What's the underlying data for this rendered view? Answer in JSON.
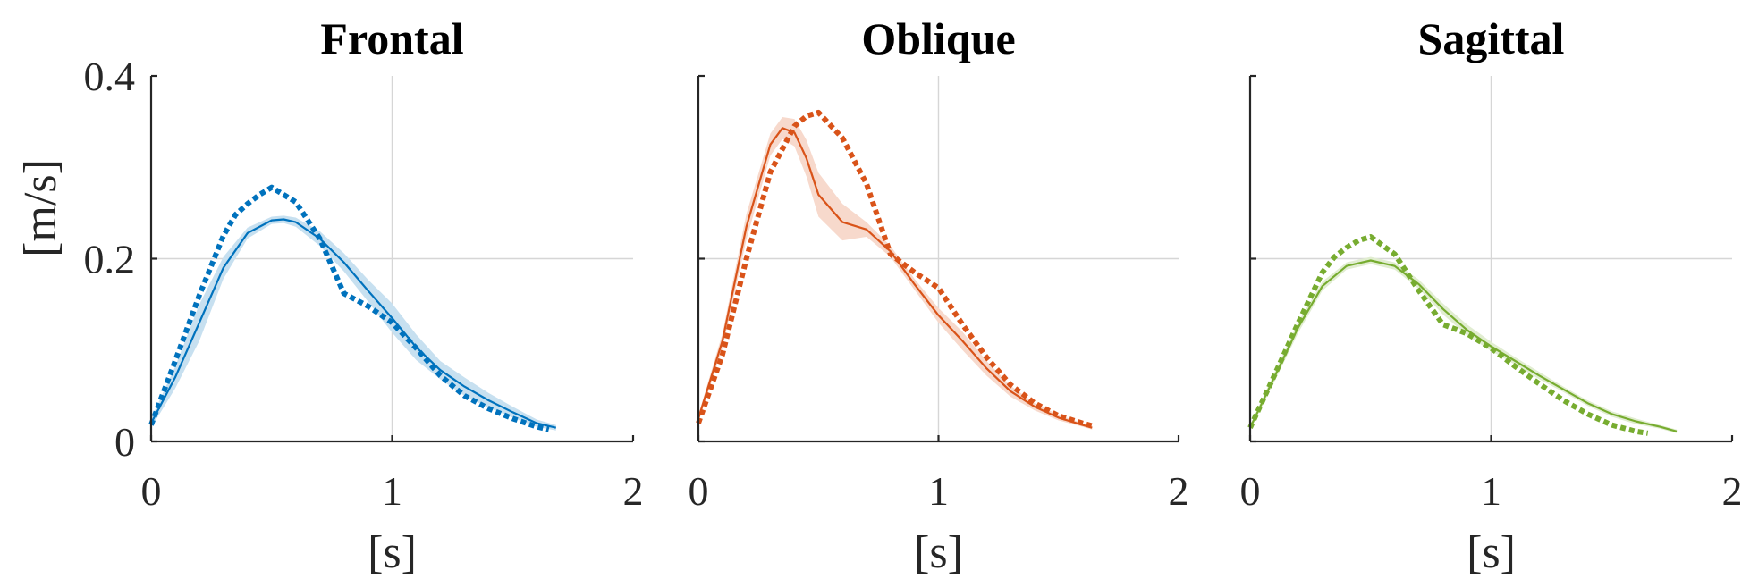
{
  "figure": {
    "ylabel": "[m/s]",
    "xlabel": "[s]",
    "x_ticks": [
      "0",
      "1",
      "2"
    ],
    "y_ticks": [
      "0",
      "0.2",
      "0.4"
    ]
  },
  "chart_data": [
    {
      "type": "line",
      "title": "Frontal",
      "xlabel": "[s]",
      "ylabel": "[m/s]",
      "xlim": [
        0,
        2
      ],
      "ylim": [
        0,
        0.4
      ],
      "grid": true,
      "color": "#0072BD",
      "series": [
        {
          "style": "solid-with-band",
          "x": [
            0,
            0.1,
            0.2,
            0.3,
            0.4,
            0.5,
            0.55,
            0.6,
            0.7,
            0.8,
            0.9,
            1.0,
            1.1,
            1.2,
            1.3,
            1.4,
            1.5,
            1.6,
            1.68
          ],
          "y": [
            0.02,
            0.07,
            0.13,
            0.19,
            0.228,
            0.242,
            0.243,
            0.24,
            0.222,
            0.196,
            0.165,
            0.135,
            0.103,
            0.078,
            0.06,
            0.045,
            0.032,
            0.02,
            0.015
          ],
          "band": [
            0.005,
            0.012,
            0.02,
            0.012,
            0.006,
            0.004,
            0.004,
            0.005,
            0.008,
            0.01,
            0.012,
            0.016,
            0.014,
            0.01,
            0.01,
            0.008,
            0.006,
            0.004,
            0.003
          ]
        },
        {
          "style": "dotted",
          "x": [
            0,
            0.1,
            0.2,
            0.3,
            0.35,
            0.4,
            0.45,
            0.5,
            0.6,
            0.7,
            0.8,
            0.9,
            1.0,
            1.1,
            1.2,
            1.3,
            1.4,
            1.5,
            1.6,
            1.65
          ],
          "y": [
            0.018,
            0.088,
            0.16,
            0.225,
            0.248,
            0.26,
            0.27,
            0.278,
            0.262,
            0.222,
            0.162,
            0.148,
            0.13,
            0.102,
            0.072,
            0.05,
            0.036,
            0.025,
            0.016,
            0.013
          ]
        }
      ]
    },
    {
      "type": "line",
      "title": "Oblique",
      "xlabel": "[s]",
      "xlim": [
        0,
        2
      ],
      "ylim": [
        0,
        0.4
      ],
      "grid": true,
      "color": "#D95319",
      "series": [
        {
          "style": "solid-with-band",
          "x": [
            0,
            0.1,
            0.2,
            0.3,
            0.35,
            0.4,
            0.45,
            0.5,
            0.6,
            0.7,
            0.8,
            0.9,
            1.0,
            1.1,
            1.2,
            1.3,
            1.4,
            1.5,
            1.6,
            1.64
          ],
          "y": [
            0.025,
            0.11,
            0.235,
            0.325,
            0.343,
            0.338,
            0.31,
            0.27,
            0.24,
            0.232,
            0.208,
            0.172,
            0.138,
            0.11,
            0.08,
            0.055,
            0.038,
            0.026,
            0.018,
            0.015
          ],
          "band": [
            0.004,
            0.008,
            0.014,
            0.012,
            0.012,
            0.015,
            0.02,
            0.024,
            0.02,
            0.008,
            0.006,
            0.006,
            0.008,
            0.01,
            0.008,
            0.006,
            0.004,
            0.003,
            0.002,
            0.002
          ]
        },
        {
          "style": "dotted",
          "x": [
            0,
            0.1,
            0.2,
            0.3,
            0.4,
            0.45,
            0.5,
            0.6,
            0.7,
            0.8,
            0.9,
            1.0,
            1.1,
            1.2,
            1.3,
            1.4,
            1.5,
            1.6,
            1.64
          ],
          "y": [
            0.02,
            0.095,
            0.2,
            0.295,
            0.345,
            0.356,
            0.36,
            0.332,
            0.282,
            0.205,
            0.185,
            0.168,
            0.128,
            0.092,
            0.062,
            0.042,
            0.028,
            0.02,
            0.017
          ]
        }
      ]
    },
    {
      "type": "line",
      "title": "Sagittal",
      "xlabel": "[s]",
      "xlim": [
        0,
        2
      ],
      "ylim": [
        0,
        0.4
      ],
      "grid": true,
      "color": "#77AC30",
      "series": [
        {
          "style": "solid-with-band",
          "x": [
            0,
            0.1,
            0.2,
            0.3,
            0.4,
            0.5,
            0.6,
            0.7,
            0.8,
            0.9,
            1.0,
            1.1,
            1.2,
            1.3,
            1.4,
            1.5,
            1.6,
            1.7,
            1.77
          ],
          "y": [
            0.015,
            0.07,
            0.125,
            0.17,
            0.192,
            0.198,
            0.192,
            0.172,
            0.145,
            0.122,
            0.104,
            0.088,
            0.072,
            0.057,
            0.042,
            0.03,
            0.022,
            0.016,
            0.011
          ],
          "band": [
            0.003,
            0.005,
            0.006,
            0.005,
            0.004,
            0.004,
            0.004,
            0.005,
            0.006,
            0.006,
            0.005,
            0.004,
            0.004,
            0.003,
            0.003,
            0.003,
            0.003,
            0.002,
            0.002
          ]
        },
        {
          "style": "dotted",
          "x": [
            0,
            0.1,
            0.2,
            0.3,
            0.35,
            0.4,
            0.45,
            0.5,
            0.6,
            0.7,
            0.8,
            0.9,
            1.0,
            1.1,
            1.2,
            1.3,
            1.4,
            1.5,
            1.6,
            1.65
          ],
          "y": [
            0.015,
            0.072,
            0.13,
            0.185,
            0.202,
            0.212,
            0.22,
            0.224,
            0.205,
            0.165,
            0.128,
            0.118,
            0.102,
            0.082,
            0.063,
            0.045,
            0.03,
            0.018,
            0.011,
            0.009
          ]
        }
      ]
    }
  ]
}
